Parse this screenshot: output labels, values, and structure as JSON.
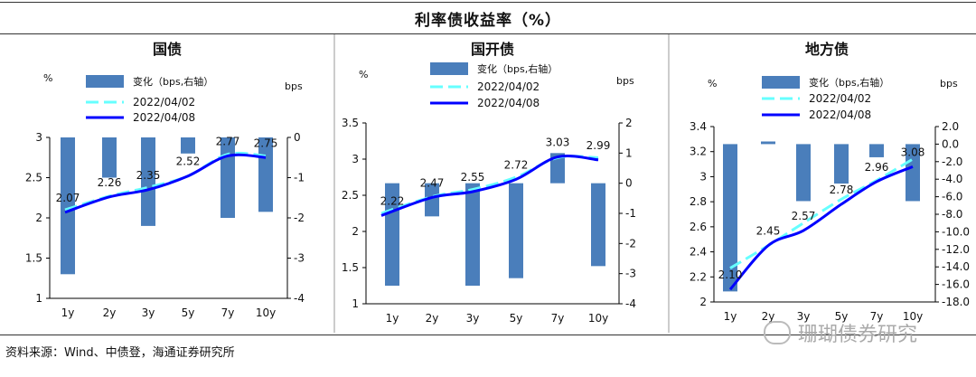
{
  "page": {
    "title": "利率债收益率（%）",
    "source": "资料来源：Wind、中债登，海通证券研究所",
    "watermark": "珊瑚债券研究"
  },
  "colors": {
    "bar": "#4A7EBB",
    "line_old": "#66FFFF",
    "line_new": "#0000FF",
    "text": "#111111"
  },
  "chart_data": [
    {
      "type": "bar+line",
      "title": "国债",
      "categories": [
        "1y",
        "2y",
        "3y",
        "5y",
        "7y",
        "10y"
      ],
      "legend": [
        "变化（bps,右轴）",
        "2022/04/02",
        "2022/04/08"
      ],
      "left_unit": "%",
      "right_unit": "bps",
      "ylim_left": [
        1,
        3
      ],
      "left_ticks": [
        "1",
        "1.5",
        "2",
        "2.5",
        "3"
      ],
      "ylim_right": [
        -4,
        0
      ],
      "right_ticks": [
        "-4",
        "-3",
        "-2",
        "-1",
        "0"
      ],
      "series": [
        {
          "name": "变化（bps,右轴）",
          "axis": "right",
          "values": [
            -3.4,
            -1.0,
            -2.2,
            -0.4,
            -2.0,
            -1.85
          ]
        },
        {
          "name": "2022/04/02",
          "axis": "left",
          "values": [
            2.1,
            2.27,
            2.38,
            2.52,
            2.79,
            2.77
          ]
        },
        {
          "name": "2022/04/08",
          "axis": "left",
          "values": [
            2.07,
            2.26,
            2.35,
            2.52,
            2.77,
            2.75
          ]
        }
      ],
      "labels": [
        "2.07",
        "2.26",
        "2.35",
        "2.52",
        "2.77",
        "2.75"
      ]
    },
    {
      "type": "bar+line",
      "title": "国开债",
      "categories": [
        "1y",
        "2y",
        "3y",
        "5y",
        "7y",
        "10y"
      ],
      "legend": [
        "变化（bps,右轴）",
        "2022/04/02",
        "2022/04/08"
      ],
      "left_unit": "%",
      "right_unit": "bps",
      "ylim_left": [
        1,
        3.5
      ],
      "left_ticks": [
        "1",
        "1.5",
        "2",
        "2.5",
        "3",
        "3.5"
      ],
      "ylim_right": [
        -4,
        2
      ],
      "right_ticks": [
        "-4",
        "-3",
        "-2",
        "-1",
        "0",
        "1",
        "2"
      ],
      "series": [
        {
          "name": "变化（bps,右轴）",
          "axis": "right",
          "values": [
            -3.4,
            -1.1,
            -3.4,
            -3.15,
            1.0,
            -2.75
          ]
        },
        {
          "name": "2022/04/02",
          "axis": "left",
          "values": [
            2.25,
            2.48,
            2.58,
            2.75,
            3.02,
            3.02
          ]
        },
        {
          "name": "2022/04/08",
          "axis": "left",
          "values": [
            2.22,
            2.47,
            2.55,
            2.72,
            3.03,
            2.99
          ]
        }
      ],
      "labels": [
        "2.22",
        "2.47",
        "2.55",
        "2.72",
        "3.03",
        "2.99"
      ]
    },
    {
      "type": "bar+line",
      "title": "地方债",
      "categories": [
        "1y",
        "2y",
        "3y",
        "5y",
        "7y",
        "10y"
      ],
      "legend": [
        "变化（bps,右轴）",
        "2022/04/02",
        "2022/04/08"
      ],
      "left_unit": "%",
      "right_unit": "bps",
      "ylim_left": [
        2,
        3.4
      ],
      "left_ticks": [
        "2",
        "2.2",
        "2.4",
        "2.6",
        "2.8",
        "3",
        "3.2",
        "3.4"
      ],
      "ylim_right": [
        -18,
        2
      ],
      "right_ticks": [
        "-18.0",
        "-16.0",
        "-14.0",
        "-12.0",
        "-10.0",
        "-8.0",
        "-6.0",
        "-4.0",
        "-2.0",
        "0.0",
        "2.0"
      ],
      "series": [
        {
          "name": "变化（bps,右轴）",
          "axis": "right",
          "values": [
            -16.8,
            0.3,
            -6.5,
            -4.5,
            -1.5,
            -6.5
          ]
        },
        {
          "name": "2022/04/02",
          "axis": "left",
          "values": [
            2.27,
            2.45,
            2.63,
            2.82,
            2.97,
            3.14
          ]
        },
        {
          "name": "2022/04/08",
          "axis": "left",
          "values": [
            2.1,
            2.45,
            2.57,
            2.78,
            2.96,
            3.08
          ]
        }
      ],
      "labels": [
        "2.10",
        "2.45",
        "2.57",
        "2.78",
        "2.96",
        "3.08"
      ]
    }
  ]
}
